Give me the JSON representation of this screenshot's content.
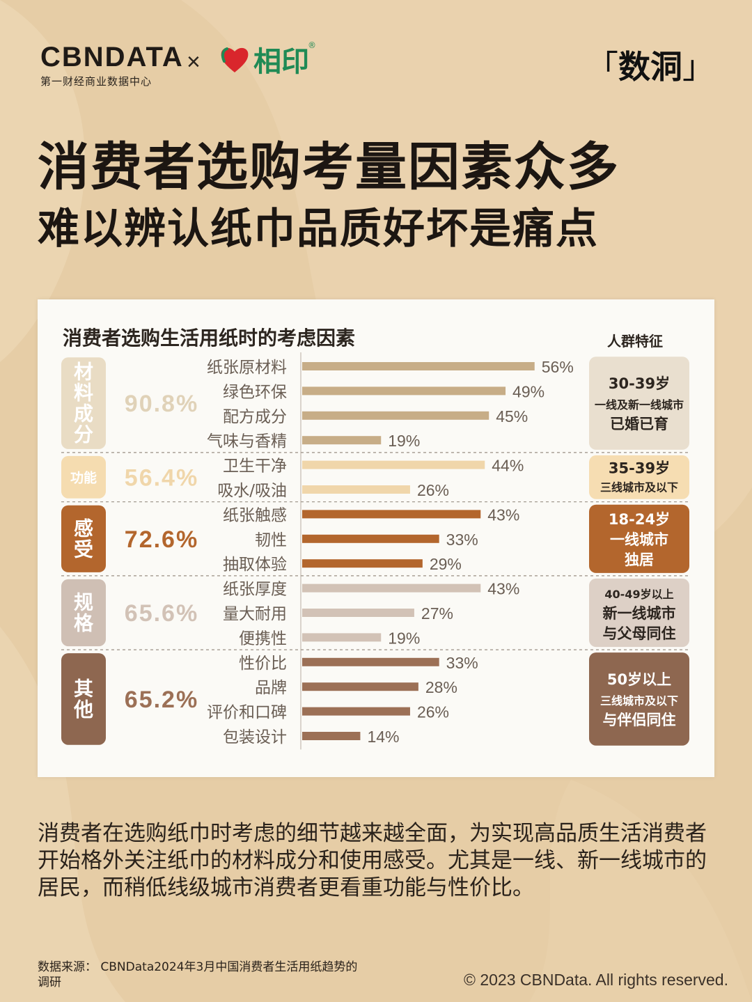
{
  "header": {
    "brand": "CBNDATA",
    "brand_sub": "第一财经商业数据中心",
    "times": "×",
    "partner_name": "相印",
    "partner_reg": "®",
    "shudong": "数洞",
    "bracket_left": "「",
    "bracket_right": "」"
  },
  "title": "消费者选购考量因素众多",
  "subtitle": "难以辨认纸巾品质好坏是痛点",
  "chart_data": {
    "type": "bar",
    "title": "消费者选购生活用纸时的考虑因素",
    "crowd_header": "人群特征",
    "value_suffix": "%",
    "groups": [
      {
        "name": "材料成分",
        "percent": "90.8%",
        "color": "#c7ad87",
        "tag_color": "#e9dcc4",
        "tag_text_color": "#ffffff",
        "percent_color": "#e0d2b8",
        "items": [
          {
            "label": "纸张原材料",
            "value": 56
          },
          {
            "label": "绿色环保",
            "value": 49
          },
          {
            "label": "配方成分",
            "value": 45
          },
          {
            "label": "气味与香精",
            "value": 19
          }
        ],
        "crowd": [
          "30-39岁",
          "一线及新一线城市",
          "已婚已育"
        ],
        "crowd_bg": "#e9dfcf",
        "crowd_text": "#2c251f"
      },
      {
        "name": "功能",
        "percent": "56.4%",
        "color": "#f0d6aa",
        "tag_color": "#f5dcb0",
        "tag_text_color": "#ffffff",
        "percent_color": "#f0d6aa",
        "items": [
          {
            "label": "卫生干净",
            "value": 44
          },
          {
            "label": "吸水/吸油",
            "value": 26
          }
        ],
        "crowd": [
          "35-39岁",
          "三线城市及以下"
        ],
        "crowd_bg": "#f6ddb2",
        "crowd_text": "#2c251f"
      },
      {
        "name": "感受",
        "percent": "72.6%",
        "color": "#b3662d",
        "tag_color": "#b3662d",
        "tag_text_color": "#ffffff",
        "percent_color": "#b3662d",
        "items": [
          {
            "label": "纸张触感",
            "value": 43
          },
          {
            "label": "韧性",
            "value": 33
          },
          {
            "label": "抽取体验",
            "value": 29
          }
        ],
        "crowd": [
          "18-24岁",
          "一线城市",
          "独居"
        ],
        "crowd_bg": "#b3662d",
        "crowd_text": "#ffffff"
      },
      {
        "name": "规格",
        "percent": "65.6%",
        "color": "#d2c2b6",
        "tag_color": "#cfbfb4",
        "tag_text_color": "#ffffff",
        "percent_color": "#d2c2b6",
        "items": [
          {
            "label": "纸张厚度",
            "value": 43
          },
          {
            "label": "量大耐用",
            "value": 27
          },
          {
            "label": "便携性",
            "value": 19
          }
        ],
        "crowd": [
          "40-49岁以上",
          "新一线城市",
          "与父母同住"
        ],
        "crowd_bg": "#ddd0c6",
        "crowd_text": "#2c251f"
      },
      {
        "name": "其他",
        "percent": "65.2%",
        "color": "#9c7056",
        "tag_color": "#8e6750",
        "tag_text_color": "#ffffff",
        "percent_color": "#9c7056",
        "items": [
          {
            "label": "性价比",
            "value": 33
          },
          {
            "label": "品牌",
            "value": 28
          },
          {
            "label": "评价和口碑",
            "value": 26
          },
          {
            "label": "包装设计",
            "value": 14
          }
        ],
        "crowd": [
          "50岁以上",
          "三线城市及以下",
          "与伴侣同住"
        ],
        "crowd_bg": "#8e6750",
        "crowd_text": "#ffffff"
      }
    ]
  },
  "paragraph": "消费者在选购纸巾时考虑的细节越来越全面，为实现高品质生活消费者开始格外关注纸巾的材料成分和使用感受。尤其是一线、新一线城市的居民，而稍低线级城市消费者更看重功能与性价比。",
  "source": "数据来源：  CBNData2024年3月中国消费者生活用纸趋势的调研",
  "copyright": "© 2023 CBNData. All rights reserved."
}
